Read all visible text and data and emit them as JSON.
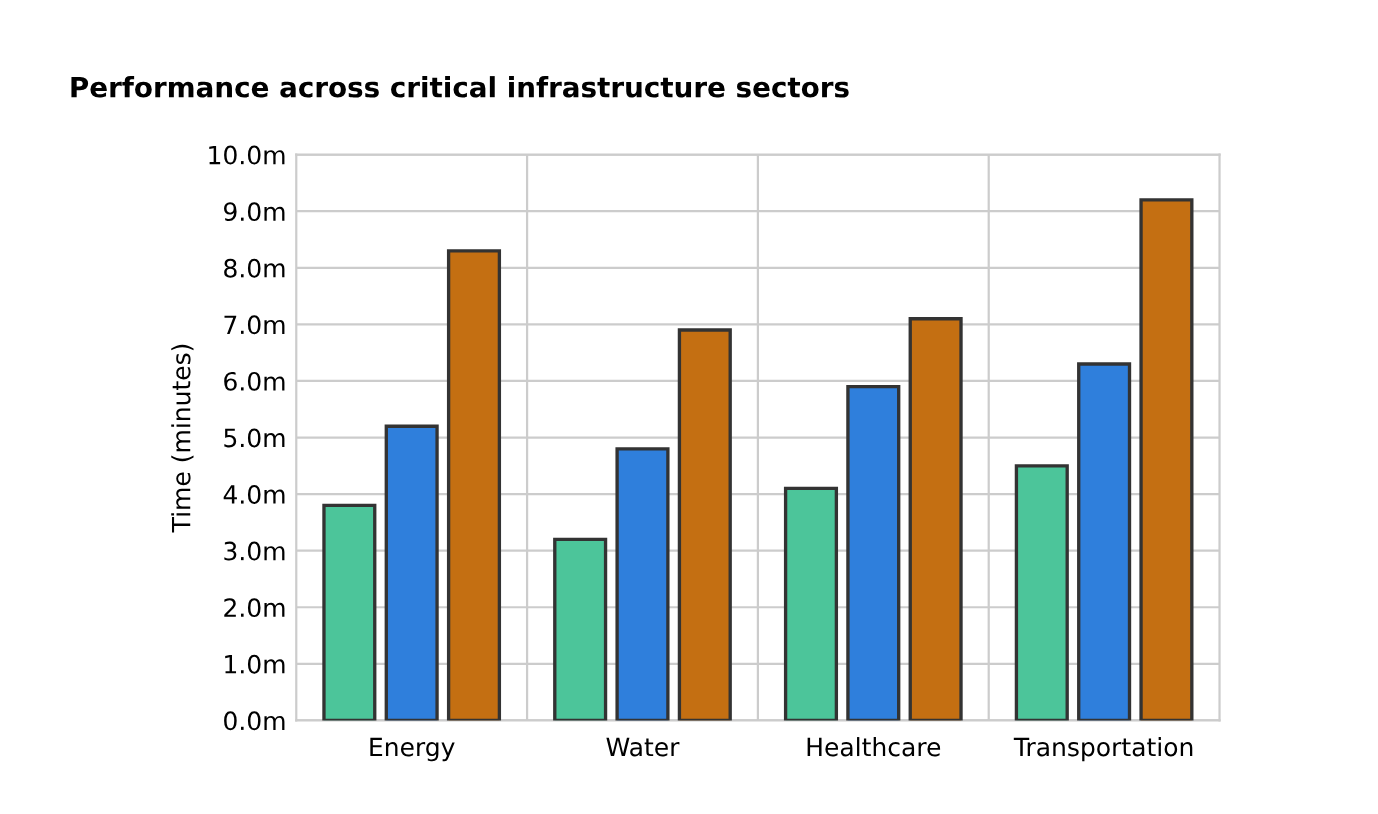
{
  "chart_data": {
    "type": "bar",
    "title": "Performance across critical infrastructure sectors",
    "ylabel": "Time (minutes)",
    "categories": [
      "Energy",
      "Water",
      "Healthcare",
      "Transportation"
    ],
    "series": [
      {
        "color": "#4cc59a",
        "values": [
          3.8,
          3.2,
          4.1,
          4.5
        ]
      },
      {
        "color": "#2f7fdc",
        "values": [
          5.2,
          4.8,
          5.9,
          6.3
        ]
      },
      {
        "color": "#c46f12",
        "values": [
          8.3,
          6.9,
          7.1,
          9.2
        ]
      }
    ],
    "ylim": [
      0,
      10
    ],
    "yticks": [
      {
        "value": 0,
        "label": "0.0m"
      },
      {
        "value": 1,
        "label": "1.0m"
      },
      {
        "value": 2,
        "label": "2.0m"
      },
      {
        "value": 3,
        "label": "3.0m"
      },
      {
        "value": 4,
        "label": "4.0m"
      },
      {
        "value": 5,
        "label": "5.0m"
      },
      {
        "value": 6,
        "label": "6.0m"
      },
      {
        "value": 7,
        "label": "7.0m"
      },
      {
        "value": 8,
        "label": "8.0m"
      },
      {
        "value": 9,
        "label": "9.0m"
      },
      {
        "value": 10,
        "label": "10.0m"
      }
    ],
    "grid": true,
    "legend": false
  }
}
